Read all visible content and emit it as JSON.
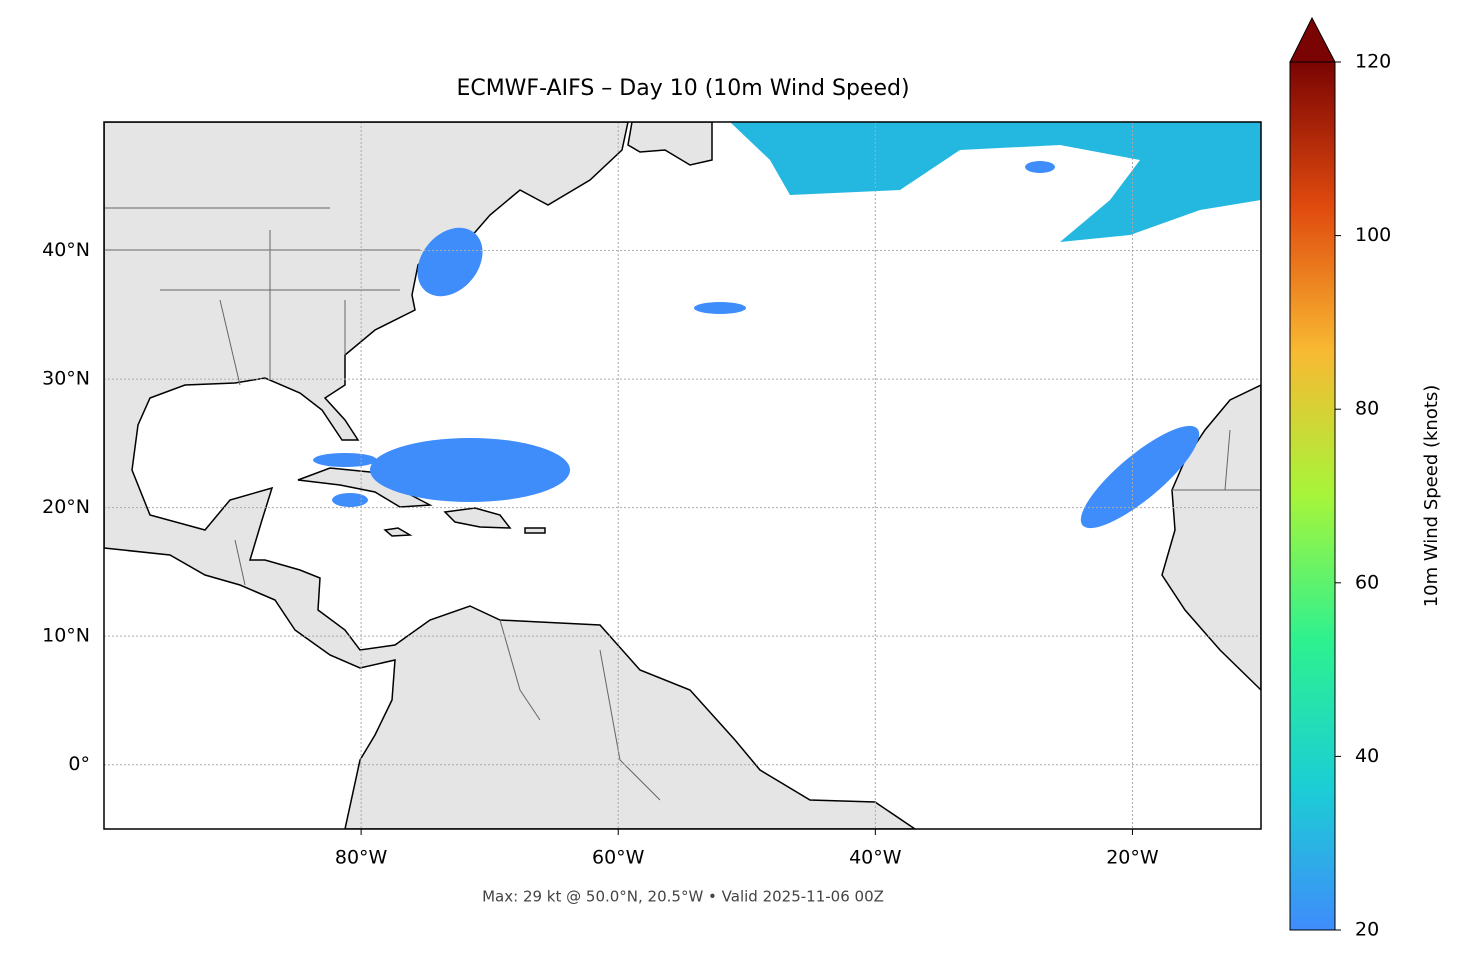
{
  "chart_data": {
    "type": "map",
    "title": "ECMWF-AIFS – Day 10 (10m Wind Speed)",
    "footnote": "Max: 29 kt @ 50.0°N, 20.5°W • Valid 2025-11-06 00Z",
    "xlim": [
      -100,
      -10
    ],
    "ylim": [
      -5,
      50
    ],
    "xticks": [
      {
        "value": -80,
        "label": "80°W"
      },
      {
        "value": -60,
        "label": "60°W"
      },
      {
        "value": -40,
        "label": "40°W"
      },
      {
        "value": -20,
        "label": "20°W"
      }
    ],
    "yticks": [
      {
        "value": 0,
        "label": "0°"
      },
      {
        "value": 10,
        "label": "10°N"
      },
      {
        "value": 20,
        "label": "20°N"
      },
      {
        "value": 30,
        "label": "30°N"
      },
      {
        "value": 40,
        "label": "40°N"
      }
    ],
    "grid": true,
    "colorbar": {
      "label": "10m Wind Speed (knots)",
      "lim": [
        20,
        120
      ],
      "ticks": [
        20,
        40,
        60,
        80,
        100,
        120
      ],
      "colors": [
        "#3f8cfb",
        "#1bcfd4",
        "#2ef190",
        "#a6f53a",
        "#f8b932",
        "#e04a0e",
        "#7a0403"
      ]
    }
  }
}
